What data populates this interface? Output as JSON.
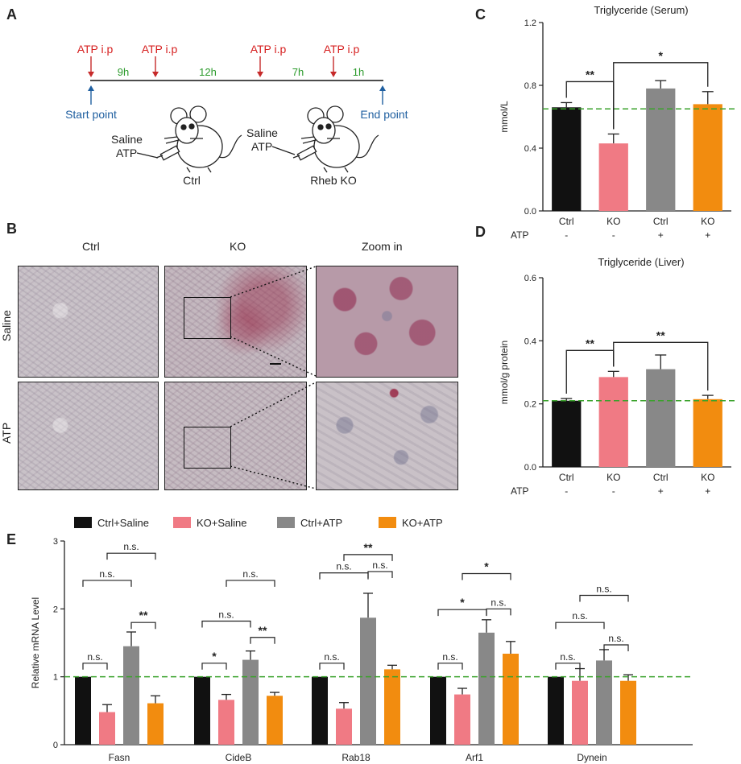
{
  "panels": {
    "A": "A",
    "B": "B",
    "C": "C",
    "D": "D",
    "E": "E"
  },
  "panel_a": {
    "injections": [
      "ATP i.p",
      "ATP i.p",
      "ATP i.p",
      "ATP i.p"
    ],
    "intervals": [
      "9h",
      "12h",
      "7h",
      "1h"
    ],
    "start_label": "Start point",
    "end_label": "End point",
    "mouse1": {
      "treat1": "Saline",
      "treat2": "ATP",
      "label": "Ctrl"
    },
    "mouse2": {
      "treat1": "Saline",
      "treat2": "ATP",
      "label": "Rheb KO"
    }
  },
  "panel_b": {
    "col_headers": [
      "Ctrl",
      "KO",
      "Zoom in"
    ],
    "row_headers": [
      "Saline",
      "ATP"
    ]
  },
  "colors": {
    "ctrl_saline": "#111111",
    "ko_saline": "#f07a84",
    "ctrl_atp": "#888888",
    "ko_atp": "#f28c0f",
    "reference": "#3aa22b",
    "injection": "#d62020",
    "timepoint": "#1f5fa0",
    "interval": "#2a9a2a"
  },
  "chart_data": [
    {
      "id": "C",
      "type": "bar",
      "title": "Triglyceride (Serum)",
      "ylabel": "mmol/L",
      "ylim": [
        0,
        1.2
      ],
      "yticks": [
        "0.0",
        "0.4",
        "0.8",
        "1.2"
      ],
      "categories": [
        "Ctrl",
        "KO",
        "Ctrl",
        "KO"
      ],
      "atp_label": "ATP",
      "atp_signs": [
        "-",
        "-",
        "+",
        "+"
      ],
      "values": [
        0.66,
        0.43,
        0.78,
        0.68
      ],
      "errors": [
        0.03,
        0.06,
        0.05,
        0.08
      ],
      "reference_line": 0.65,
      "significance": [
        {
          "from": 0,
          "to": 1,
          "label": "**"
        },
        {
          "from": 1,
          "to": 3,
          "label": "*"
        }
      ]
    },
    {
      "id": "D",
      "type": "bar",
      "title": "Triglyceride (Liver)",
      "ylabel": "mmol/g protein",
      "ylim": [
        0,
        0.6
      ],
      "yticks": [
        "0.0",
        "0.2",
        "0.4",
        "0.6"
      ],
      "categories": [
        "Ctrl",
        "KO",
        "Ctrl",
        "KO"
      ],
      "atp_label": "ATP",
      "atp_signs": [
        "-",
        "-",
        "+",
        "+"
      ],
      "values": [
        0.21,
        0.285,
        0.31,
        0.215
      ],
      "errors": [
        0.007,
        0.018,
        0.045,
        0.012
      ],
      "reference_line": 0.21,
      "significance": [
        {
          "from": 0,
          "to": 1,
          "label": "**"
        },
        {
          "from": 1,
          "to": 3,
          "label": "**"
        }
      ]
    },
    {
      "id": "E",
      "type": "bar",
      "ylabel": "Relative mRNA Level",
      "ylim": [
        0,
        3
      ],
      "yticks": [
        "0",
        "1",
        "2",
        "3"
      ],
      "categories": [
        "Fasn",
        "CideB",
        "Rab18",
        "Arf1",
        "Dynein"
      ],
      "series": [
        {
          "name": "Ctrl+Saline",
          "values": [
            1.0,
            1.0,
            1.0,
            1.0,
            1.0
          ],
          "errors": [
            0,
            0,
            0,
            0,
            0
          ]
        },
        {
          "name": "KO+Saline",
          "values": [
            0.48,
            0.66,
            0.53,
            0.74,
            0.94
          ],
          "errors": [
            0.11,
            0.08,
            0.09,
            0.09,
            0.18
          ]
        },
        {
          "name": "Ctrl+ATP",
          "values": [
            1.45,
            1.25,
            1.87,
            1.65,
            1.24
          ],
          "errors": [
            0.21,
            0.13,
            0.36,
            0.19,
            0.16
          ]
        },
        {
          "name": "KO+ATP",
          "values": [
            0.61,
            0.72,
            1.11,
            1.34,
            0.94
          ],
          "errors": [
            0.11,
            0.05,
            0.06,
            0.18,
            0.09
          ]
        }
      ],
      "reference_line": 1.0,
      "significance": [
        {
          "group": 0,
          "from": 0,
          "to": 1,
          "label": "n.s.",
          "level": 1.2
        },
        {
          "group": 0,
          "from": 0,
          "to": 2,
          "label": "n.s.",
          "level": 2.42
        },
        {
          "group": 0,
          "from": 1,
          "to": 3,
          "label": "n.s.",
          "level": 2.82
        },
        {
          "group": 0,
          "from": 2,
          "to": 3,
          "label": "**",
          "level": 1.8
        },
        {
          "group": 1,
          "from": 0,
          "to": 1,
          "label": "*",
          "level": 1.2
        },
        {
          "group": 1,
          "from": 0,
          "to": 2,
          "label": "n.s.",
          "level": 1.82
        },
        {
          "group": 1,
          "from": 1,
          "to": 3,
          "label": "n.s.",
          "level": 2.42
        },
        {
          "group": 1,
          "from": 2,
          "to": 3,
          "label": "**",
          "level": 1.58
        },
        {
          "group": 2,
          "from": 0,
          "to": 1,
          "label": "n.s.",
          "level": 1.2
        },
        {
          "group": 2,
          "from": 0,
          "to": 2,
          "label": "n.s.",
          "level": 2.53
        },
        {
          "group": 2,
          "from": 1,
          "to": 3,
          "label": "**",
          "level": 2.8
        },
        {
          "group": 2,
          "from": 2,
          "to": 3,
          "label": "n.s.",
          "level": 2.55
        },
        {
          "group": 3,
          "from": 0,
          "to": 1,
          "label": "n.s.",
          "level": 1.2
        },
        {
          "group": 3,
          "from": 0,
          "to": 2,
          "label": "*",
          "level": 1.99
        },
        {
          "group": 3,
          "from": 1,
          "to": 3,
          "label": "*",
          "level": 2.52
        },
        {
          "group": 3,
          "from": 2,
          "to": 3,
          "label": "n.s.",
          "level": 2.0
        },
        {
          "group": 4,
          "from": 0,
          "to": 1,
          "label": "n.s.",
          "level": 1.2
        },
        {
          "group": 4,
          "from": 0,
          "to": 2,
          "label": "n.s.",
          "level": 1.8
        },
        {
          "group": 4,
          "from": 1,
          "to": 3,
          "label": "n.s.",
          "level": 2.2
        },
        {
          "group": 4,
          "from": 2,
          "to": 3,
          "label": "n.s.",
          "level": 1.47
        }
      ]
    }
  ]
}
